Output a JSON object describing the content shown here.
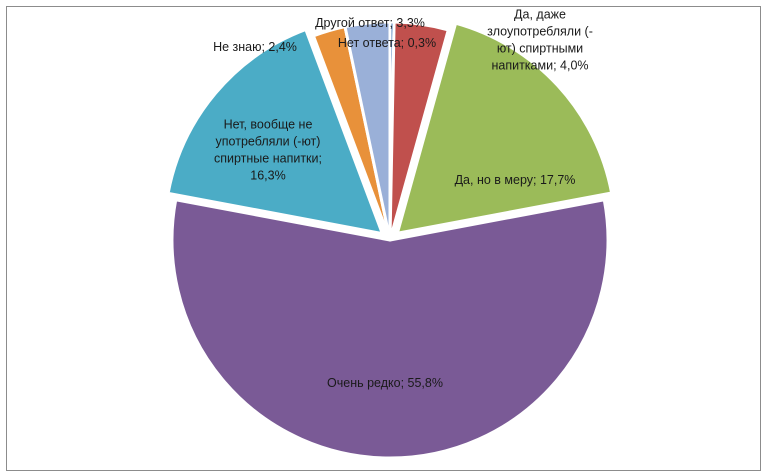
{
  "chart_data": {
    "type": "pie",
    "title": "",
    "legend": "none",
    "slices": [
      {
        "name": "Нет ответа",
        "value": 0.3,
        "label_lines": [
          "Нет ответа; 0,3%"
        ],
        "color": "#4f81bd"
      },
      {
        "name": "Да, даже злоупотребляли (-ют) спиртными напитками",
        "value": 4.0,
        "label_lines": [
          "Да, даже",
          "злоупотребляли (-",
          "ют) спиртными",
          "напитками; 4,0%"
        ],
        "color": "#c0504d"
      },
      {
        "name": "Да, но в меру",
        "value": 17.7,
        "label_lines": [
          "Да, но в меру; 17,7%"
        ],
        "color": "#9bbb59"
      },
      {
        "name": "Очень редко",
        "value": 55.8,
        "label_lines": [
          "Очень редко; 55,8%"
        ],
        "color": "#7a5a96"
      },
      {
        "name": "Нет, вообще не употребляли (-ют) спиртные напитки",
        "value": 16.3,
        "label_lines": [
          "Нет, вообще не",
          "употребляли (-ют)",
          "спиртные напитки;",
          "16,3%"
        ],
        "color": "#4bacc6"
      },
      {
        "name": "Не знаю",
        "value": 2.4,
        "label_lines": [
          "Не знаю; 2,4%"
        ],
        "color": "#e8913a"
      },
      {
        "name": "Другой ответ",
        "value": 3.3,
        "label_lines": [
          "Другой ответ; 3,3%"
        ],
        "color": "#9ab0d8"
      }
    ]
  }
}
